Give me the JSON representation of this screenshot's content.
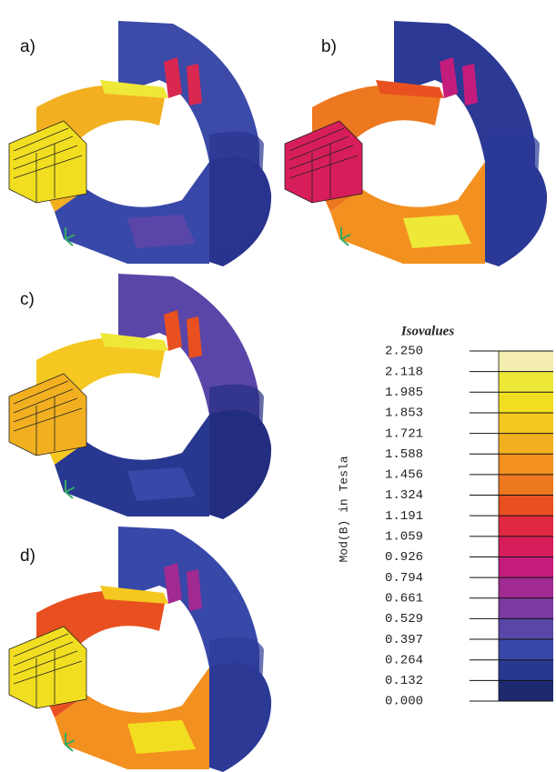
{
  "panels": [
    {
      "label": "a)"
    },
    {
      "label": "b)"
    },
    {
      "label": "c)"
    },
    {
      "label": "d)"
    }
  ],
  "legend": {
    "title": "Isovalues",
    "axis_label": "Mod(B) in Tesla",
    "values": [
      "2.250",
      "2.118",
      "1.985",
      "1.853",
      "1.721",
      "1.588",
      "1.456",
      "1.324",
      "1.191",
      "1.059",
      "0.926",
      "0.794",
      "0.661",
      "0.529",
      "0.397",
      "0.264",
      "0.132",
      "0.000"
    ],
    "colors": [
      "#f4eeb0",
      "#eee838",
      "#f2de20",
      "#f4c820",
      "#f2b020",
      "#f29020",
      "#ee7820",
      "#e85020",
      "#e02840",
      "#d81e5a",
      "#c41c7c",
      "#a02a90",
      "#7a3aa0",
      "#5a46a8",
      "#3848a8",
      "#283890",
      "#1e2a70"
    ]
  }
}
